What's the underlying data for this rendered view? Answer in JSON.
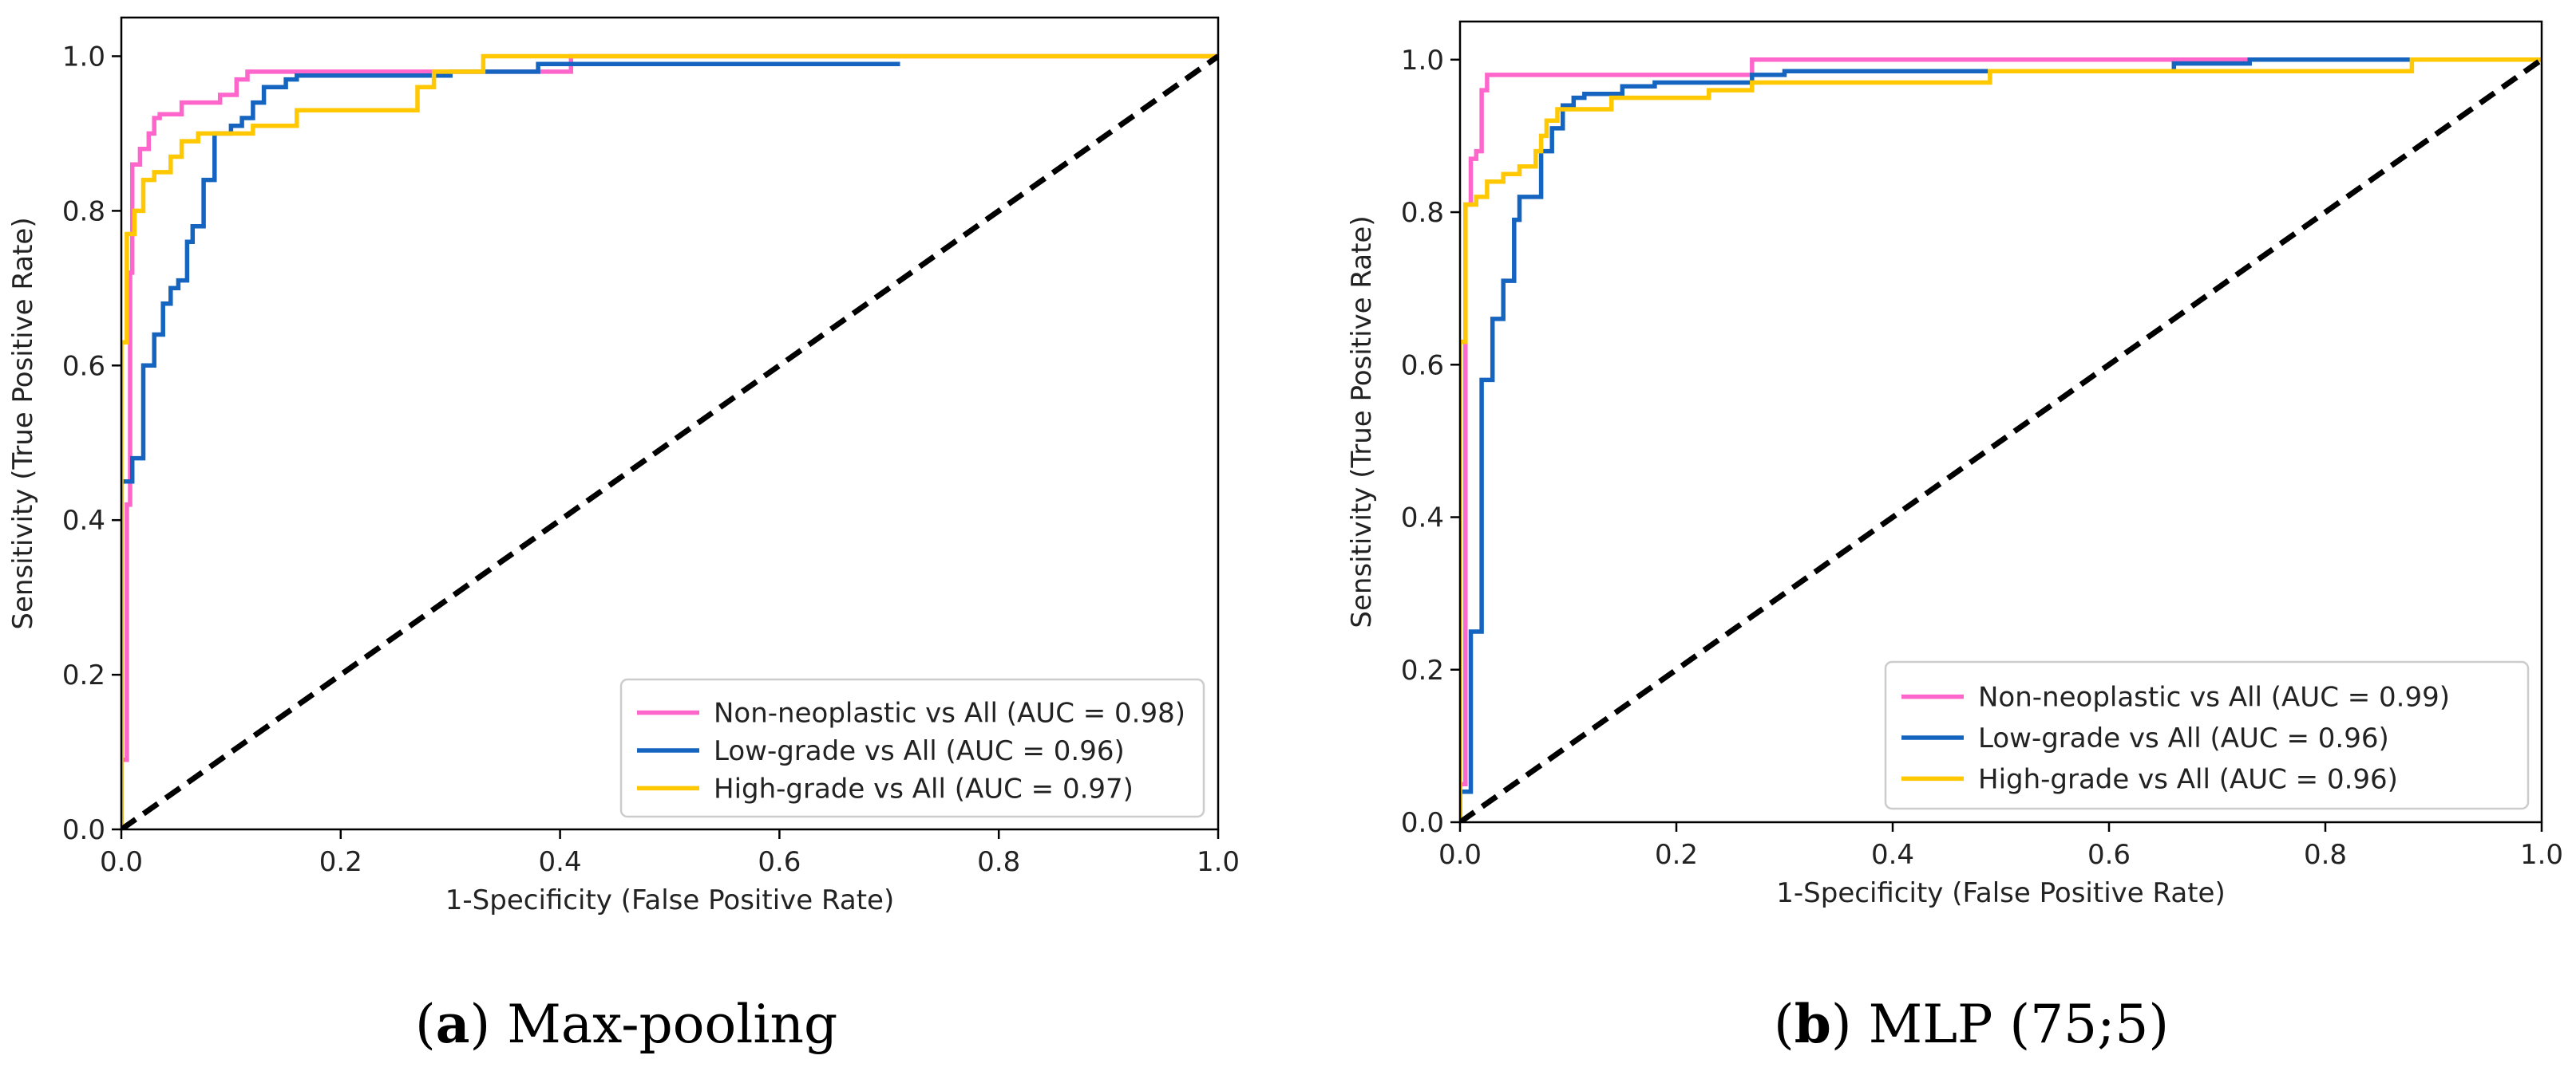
{
  "colors": {
    "nonneoplastic": "#ff66cc",
    "lowgrade": "#1565c0",
    "highgrade": "#ffc800",
    "chance": "#000000",
    "axis": "#000000"
  },
  "captions": [
    {
      "letter": "a",
      "text": "Max-pooling"
    },
    {
      "letter": "b",
      "text": "MLP (75;5)"
    }
  ],
  "chart_data": [
    {
      "type": "line",
      "title": "",
      "xlabel": "1-Specificity (False Positive Rate)",
      "ylabel": "Sensitivity (True Positive Rate)",
      "xlim": [
        0,
        1
      ],
      "ylim": [
        0,
        1.05
      ],
      "xticks": [
        "0.0",
        "0.2",
        "0.4",
        "0.6",
        "0.8",
        "1.0"
      ],
      "yticks": [
        "0.0",
        "0.2",
        "0.4",
        "0.6",
        "0.8",
        "1.0"
      ],
      "legend_position": "lower-right",
      "series": [
        {
          "name": "Non-neoplastic vs All (AUC = 0.98)",
          "color_key": "nonneoplastic",
          "x": [
            0,
            0,
            0.005,
            0.005,
            0.008,
            0.008,
            0.01,
            0.01,
            0.017,
            0.017,
            0.025,
            0.025,
            0.03,
            0.03,
            0.035,
            0.035,
            0.055,
            0.055,
            0.09,
            0.09,
            0.105,
            0.105,
            0.115,
            0.115,
            0.41,
            0.41,
            1.0
          ],
          "y": [
            0,
            0.09,
            0.09,
            0.42,
            0.42,
            0.72,
            0.72,
            0.86,
            0.86,
            0.88,
            0.88,
            0.9,
            0.9,
            0.92,
            0.92,
            0.925,
            0.925,
            0.94,
            0.94,
            0.95,
            0.95,
            0.97,
            0.97,
            0.98,
            0.98,
            1.0,
            1.0
          ]
        },
        {
          "name": "Low-grade vs All (AUC = 0.96)",
          "color_key": "lowgrade",
          "x": [
            0,
            0,
            0.01,
            0.01,
            0.02,
            0.02,
            0.03,
            0.03,
            0.038,
            0.038,
            0.045,
            0.045,
            0.052,
            0.052,
            0.06,
            0.06,
            0.065,
            0.065,
            0.075,
            0.075,
            0.085,
            0.085,
            0.1,
            0.1,
            0.11,
            0.11,
            0.12,
            0.12,
            0.13,
            0.13,
            0.15,
            0.15,
            0.16,
            0.16,
            0.3,
            0.3,
            0.38,
            0.38,
            0.47,
            0.47,
            0.71
          ],
          "y": [
            0,
            0.45,
            0.45,
            0.48,
            0.48,
            0.6,
            0.6,
            0.64,
            0.64,
            0.68,
            0.68,
            0.7,
            0.7,
            0.71,
            0.71,
            0.76,
            0.76,
            0.78,
            0.78,
            0.84,
            0.84,
            0.9,
            0.9,
            0.91,
            0.91,
            0.92,
            0.92,
            0.94,
            0.94,
            0.96,
            0.96,
            0.97,
            0.97,
            0.975,
            0.975,
            0.98,
            0.98,
            0.99,
            0.99,
            0.99,
            0.99
          ]
        },
        {
          "name": "High-grade vs All (AUC = 0.97)",
          "color_key": "highgrade",
          "x": [
            0,
            0,
            0.005,
            0.005,
            0.012,
            0.012,
            0.02,
            0.02,
            0.03,
            0.03,
            0.045,
            0.045,
            0.055,
            0.055,
            0.07,
            0.07,
            0.12,
            0.12,
            0.16,
            0.16,
            0.27,
            0.27,
            0.285,
            0.285,
            0.33,
            0.33,
            1.0
          ],
          "y": [
            0,
            0.63,
            0.63,
            0.77,
            0.77,
            0.8,
            0.8,
            0.84,
            0.84,
            0.85,
            0.85,
            0.87,
            0.87,
            0.89,
            0.89,
            0.9,
            0.9,
            0.91,
            0.91,
            0.93,
            0.93,
            0.96,
            0.96,
            0.98,
            0.98,
            1.0,
            1.0
          ]
        },
        {
          "name": "chance",
          "color_key": "chance",
          "dashed": true,
          "x": [
            0,
            1
          ],
          "y": [
            0,
            1
          ]
        }
      ]
    },
    {
      "type": "line",
      "title": "",
      "xlabel": "1-Specificity (False Positive Rate)",
      "ylabel": "Sensitivity (True Positive Rate)",
      "xlim": [
        0,
        1
      ],
      "ylim": [
        0,
        1.05
      ],
      "xticks": [
        "0.0",
        "0.2",
        "0.4",
        "0.6",
        "0.8",
        "1.0"
      ],
      "yticks": [
        "0.0",
        "0.2",
        "0.4",
        "0.6",
        "0.8",
        "1.0"
      ],
      "legend_position": "lower-right",
      "series": [
        {
          "name": "Non-neoplastic vs All (AUC = 0.99)",
          "color_key": "nonneoplastic",
          "x": [
            0,
            0,
            0.005,
            0.005,
            0.01,
            0.01,
            0.015,
            0.015,
            0.02,
            0.02,
            0.025,
            0.025,
            0.27,
            0.27,
            0.65,
            0.65,
            1.0
          ],
          "y": [
            0,
            0.05,
            0.05,
            0.81,
            0.81,
            0.87,
            0.87,
            0.88,
            0.88,
            0.96,
            0.96,
            0.98,
            0.98,
            1.0,
            1.0,
            1.0,
            1.0
          ],
          "visible_until": 0.73
        },
        {
          "name": "Low-grade vs All (AUC = 0.96)",
          "color_key": "lowgrade",
          "x": [
            0,
            0,
            0.01,
            0.01,
            0.02,
            0.02,
            0.03,
            0.03,
            0.04,
            0.04,
            0.05,
            0.05,
            0.055,
            0.055,
            0.075,
            0.075,
            0.085,
            0.085,
            0.095,
            0.095,
            0.105,
            0.105,
            0.115,
            0.115,
            0.15,
            0.15,
            0.18,
            0.18,
            0.27,
            0.27,
            0.3,
            0.3,
            0.66,
            0.66,
            0.73,
            0.73,
            0.88,
            0.88,
            1.0
          ],
          "y": [
            0,
            0.04,
            0.04,
            0.25,
            0.25,
            0.58,
            0.58,
            0.66,
            0.66,
            0.71,
            0.71,
            0.79,
            0.79,
            0.82,
            0.82,
            0.88,
            0.88,
            0.91,
            0.91,
            0.94,
            0.94,
            0.95,
            0.95,
            0.955,
            0.955,
            0.965,
            0.965,
            0.97,
            0.97,
            0.98,
            0.98,
            0.985,
            0.985,
            0.995,
            0.995,
            1.0,
            1.0,
            1.0,
            1.0
          ]
        },
        {
          "name": "High-grade vs All (AUC = 0.96)",
          "color_key": "highgrade",
          "x": [
            0,
            0,
            0.005,
            0.005,
            0.015,
            0.015,
            0.025,
            0.025,
            0.04,
            0.04,
            0.055,
            0.055,
            0.07,
            0.07,
            0.075,
            0.075,
            0.08,
            0.08,
            0.09,
            0.09,
            0.14,
            0.14,
            0.23,
            0.23,
            0.27,
            0.27,
            0.49,
            0.49,
            0.88,
            0.88,
            1.0
          ],
          "y": [
            0,
            0.63,
            0.63,
            0.81,
            0.81,
            0.82,
            0.82,
            0.84,
            0.84,
            0.85,
            0.85,
            0.86,
            0.86,
            0.88,
            0.88,
            0.9,
            0.9,
            0.92,
            0.92,
            0.935,
            0.935,
            0.95,
            0.95,
            0.96,
            0.96,
            0.97,
            0.97,
            0.985,
            0.985,
            1.0,
            1.0
          ]
        },
        {
          "name": "chance",
          "color_key": "chance",
          "dashed": true,
          "x": [
            0,
            1
          ],
          "y": [
            0,
            1
          ]
        }
      ]
    }
  ]
}
